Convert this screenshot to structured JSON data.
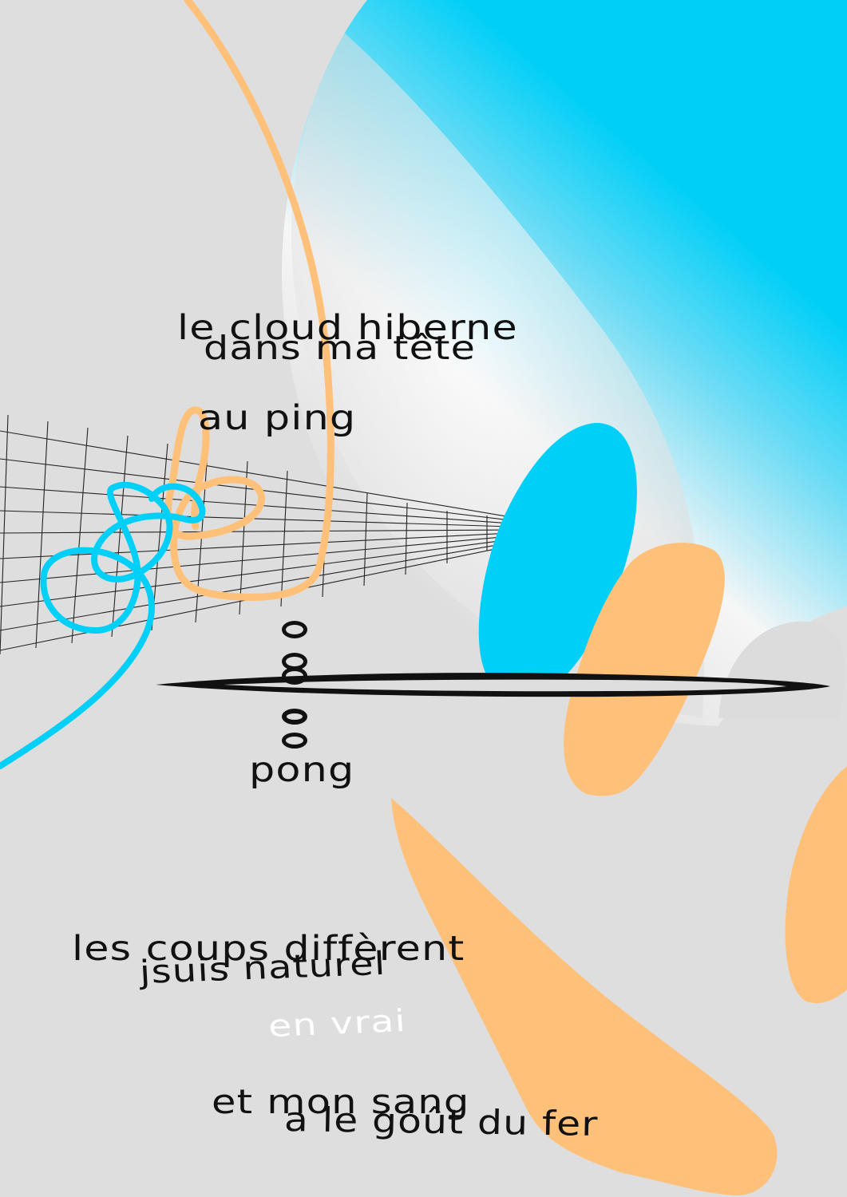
{
  "poster": {
    "lines": {
      "line1": "le cloud hiberne",
      "line2": "dans ma tête",
      "line3": "au ping",
      "line4": "pong",
      "line5": "les coups diffèrent",
      "line6": "jsuis naturel",
      "line7": "en vrai",
      "line8": "et mon sang",
      "line9": "a le goût du fer"
    },
    "colors": {
      "background": "#dedede",
      "cyan": "#00cff7",
      "orange": "#ffc07a",
      "ink": "#111111",
      "white": "#ffffff"
    }
  }
}
